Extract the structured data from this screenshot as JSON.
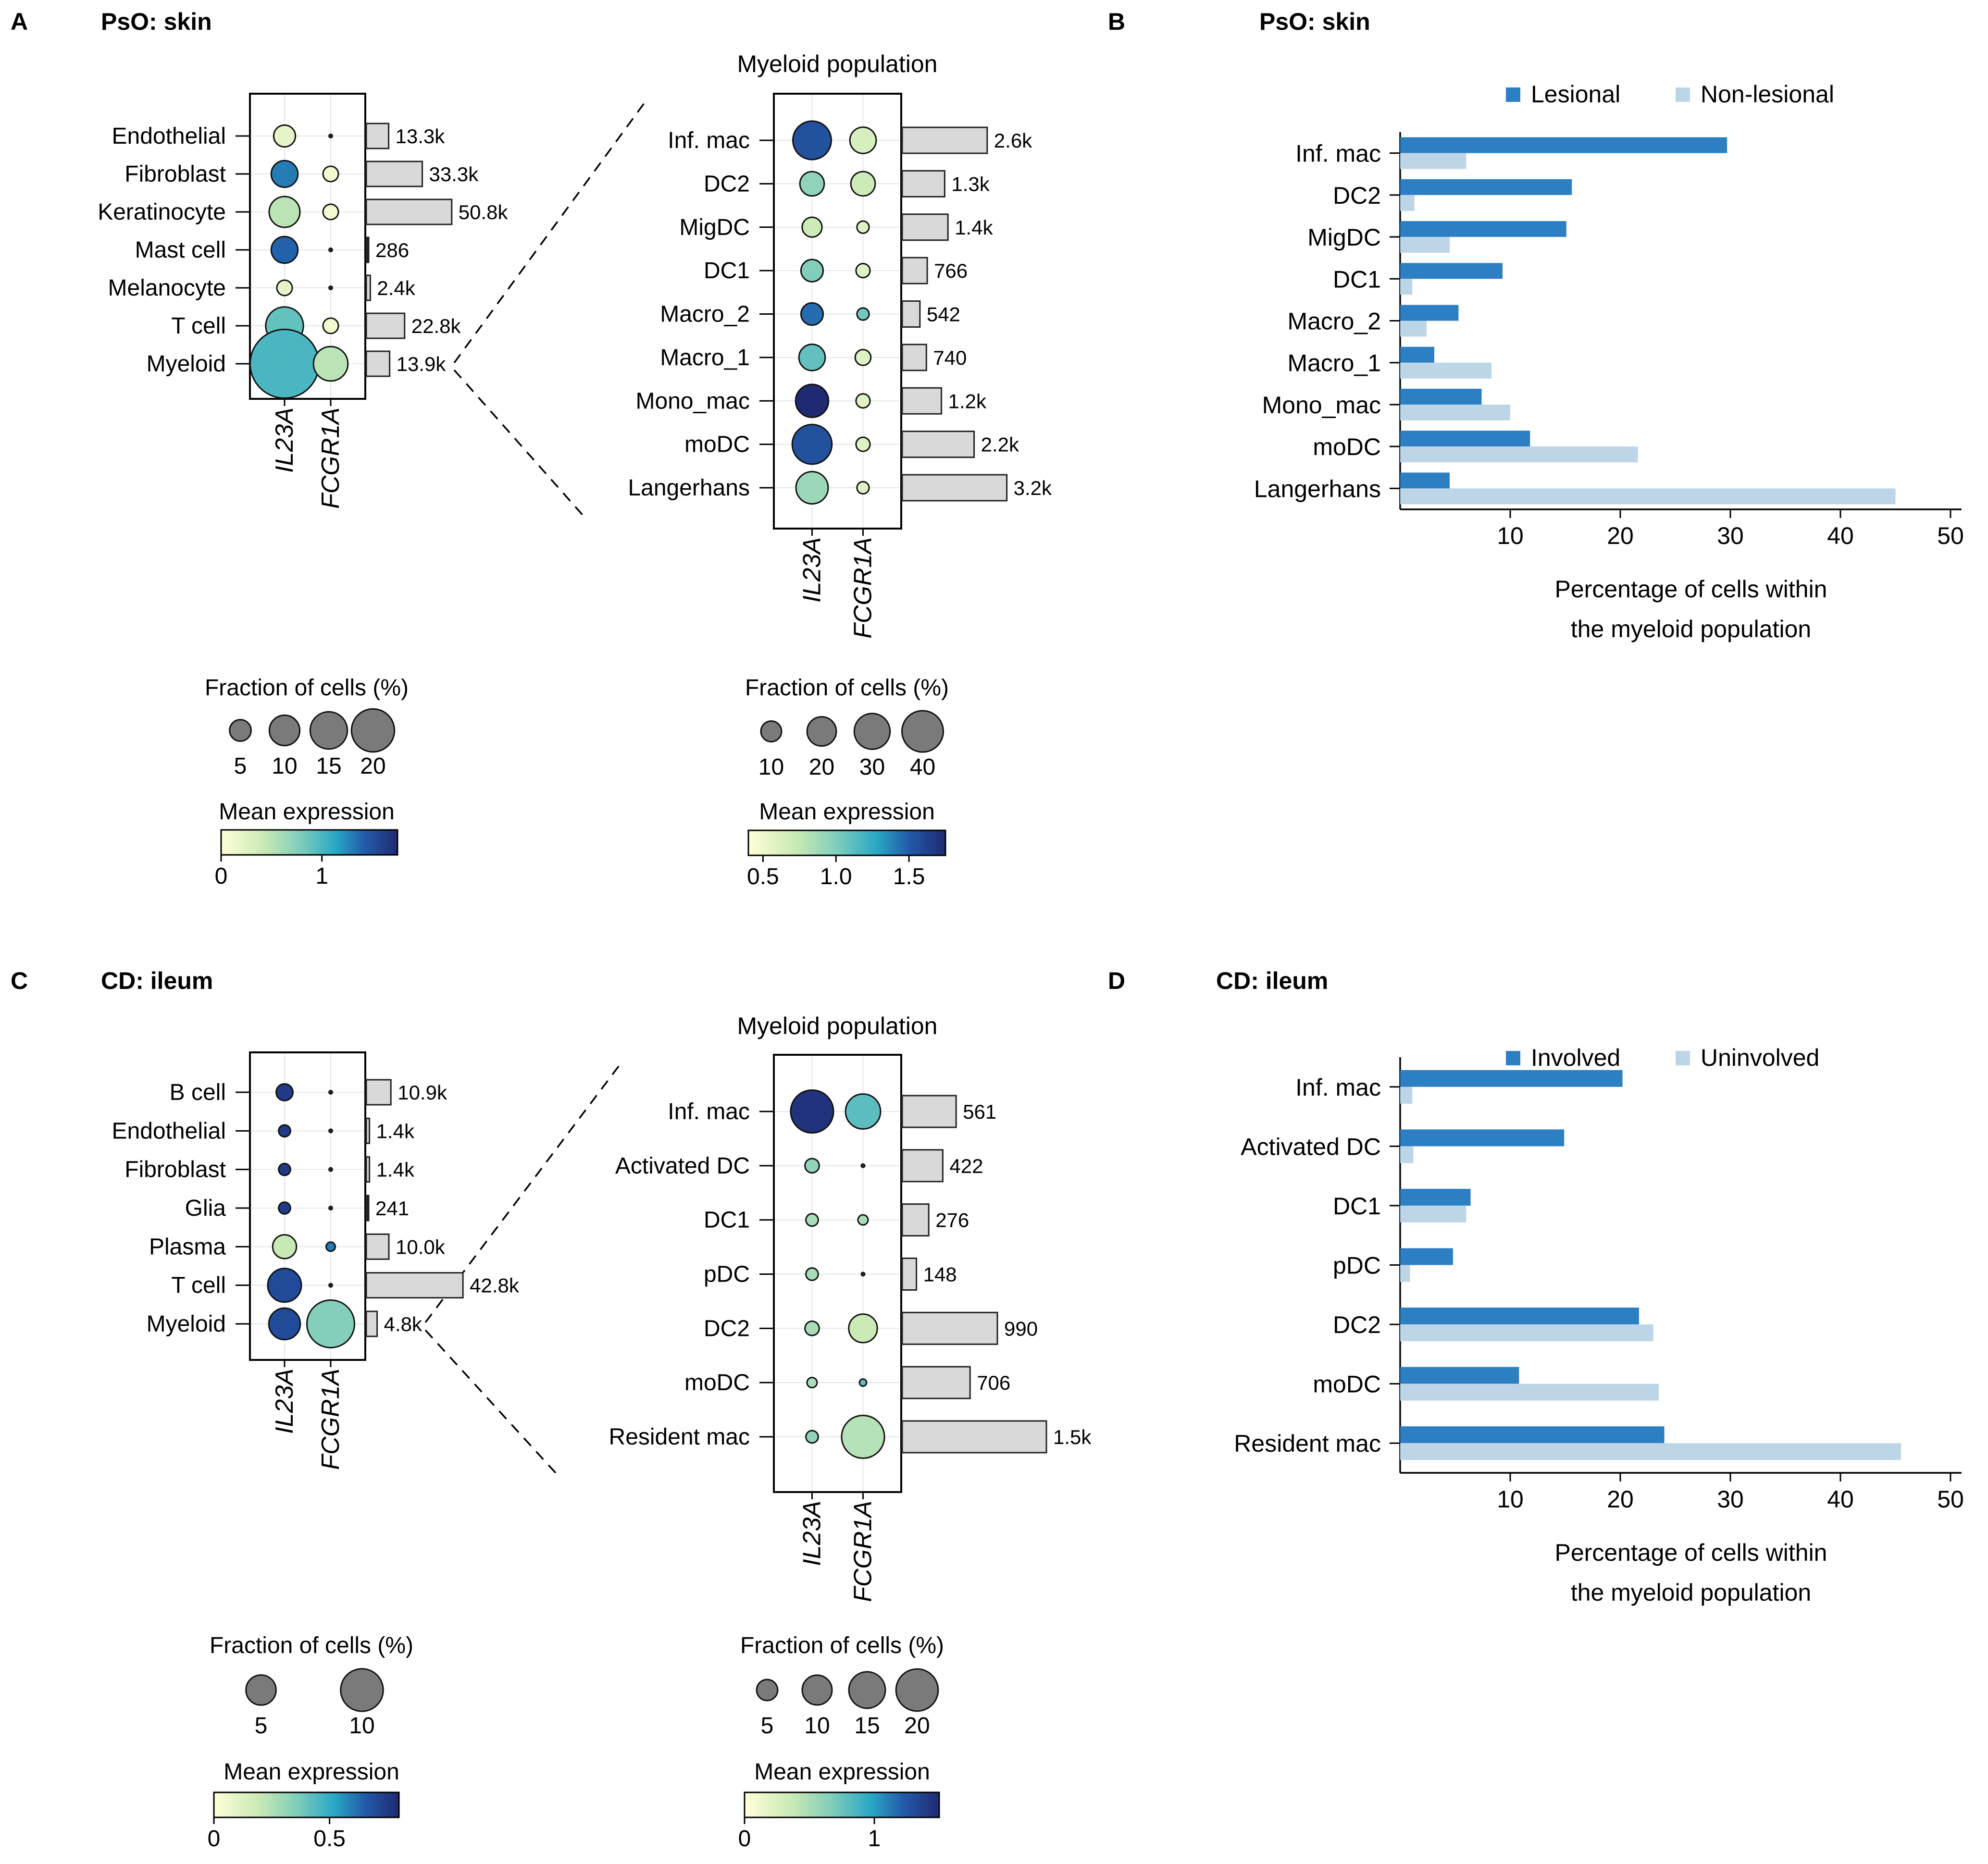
{
  "colors": {
    "lesional": "#2d7fc4",
    "nonlesional": "#bcd6e8",
    "bar_grey": "#d9d9d9",
    "dot_size_grey": "#7a7a7a"
  },
  "panels": {
    "A": {
      "letter": "A",
      "title": "PsO: skin",
      "subtitle": "Myeloid population"
    },
    "B": {
      "letter": "B",
      "title": "PsO: skin"
    },
    "C": {
      "letter": "C",
      "title": "CD: ileum",
      "subtitle": "Myeloid population"
    },
    "D": {
      "letter": "D",
      "title": "CD: ileum"
    }
  },
  "genes": [
    "IL23A",
    "FCGR1A"
  ],
  "legends": {
    "fraction_title": "Fraction of cells (%)",
    "mean_expr_title": "Mean expression",
    "A_left": {
      "sizes": [
        "5",
        "10",
        "15",
        "20"
      ],
      "ticks": [
        "0",
        "1"
      ],
      "tick_values": [
        0,
        1
      ],
      "max": 1.75
    },
    "A_right": {
      "sizes": [
        "10",
        "20",
        "30",
        "40"
      ],
      "ticks": [
        "0.5",
        "1.0",
        "1.5"
      ],
      "tick_values": [
        0.5,
        1.0,
        1.5
      ],
      "min": 0.4,
      "max": 1.75
    },
    "C_left": {
      "sizes": [
        "5",
        "10"
      ],
      "ticks": [
        "0",
        "0.5"
      ],
      "tick_values": [
        0,
        0.5
      ],
      "max": 0.8
    },
    "C_right": {
      "sizes": [
        "5",
        "10",
        "15",
        "20"
      ],
      "ticks": [
        "0",
        "1"
      ],
      "tick_values": [
        0,
        1
      ],
      "max": 1.5
    }
  },
  "chart_data": [
    {
      "id": "A_left",
      "type": "scatter",
      "categories": [
        "Endothelial",
        "Fibroblast",
        "Keratinocyte",
        "Mast cell",
        "Melanocyte",
        "T cell",
        "Myeloid"
      ],
      "fraction": {
        "IL23A": [
          2,
          3,
          4,
          3,
          1,
          6,
          20
        ],
        "FCGR1A": [
          0,
          1,
          1,
          0,
          0,
          1,
          5
        ]
      },
      "expression": {
        "IL23A": [
          0.2,
          1.3,
          0.5,
          1.4,
          0.2,
          0.9,
          1.0
        ],
        "FCGR1A": [
          0,
          0.1,
          0.1,
          0,
          0,
          0.1,
          0.5
        ]
      },
      "counts": [
        13.3,
        33.3,
        50.8,
        0.286,
        2.4,
        22.8,
        13.9
      ],
      "count_labels": [
        "13.3k",
        "33.3k",
        "50.8k",
        "286",
        "2.4k",
        "22.8k",
        "13.9k"
      ]
    },
    {
      "id": "A_right",
      "type": "scatter",
      "categories": [
        "Inf. mac",
        "DC2",
        "MigDC",
        "DC1",
        "Macro_2",
        "Macro_1",
        "Mono_mac",
        "moDC",
        "Langerhans"
      ],
      "fraction": {
        "IL23A": [
          30,
          12,
          8,
          10,
          10,
          14,
          22,
          32,
          21
        ],
        "FCGR1A": [
          14,
          12,
          3,
          4,
          3,
          5,
          4,
          4,
          3
        ]
      },
      "expression": {
        "IL23A": [
          1.55,
          0.95,
          0.7,
          1.0,
          1.45,
          1.1,
          1.75,
          1.55,
          0.9
        ],
        "FCGR1A": [
          0.65,
          0.7,
          0.6,
          0.6,
          1.05,
          0.6,
          0.6,
          0.6,
          0.6
        ]
      },
      "counts": [
        2.6,
        1.3,
        1.4,
        0.766,
        0.542,
        0.74,
        1.2,
        2.2,
        3.2
      ],
      "count_labels": [
        "2.6k",
        "1.3k",
        "1.4k",
        "766",
        "542",
        "740",
        "1.2k",
        "2.2k",
        "3.2k"
      ]
    },
    {
      "id": "B",
      "type": "bar",
      "orientation": "horizontal",
      "categories": [
        "Inf. mac",
        "DC2",
        "MigDC",
        "DC1",
        "Macro_2",
        "Macro_1",
        "Mono_mac",
        "moDC",
        "Langerhans"
      ],
      "series": [
        {
          "name": "Lesional",
          "values": [
            29.7,
            15.6,
            15.1,
            9.3,
            5.3,
            3.1,
            7.4,
            11.8,
            4.5
          ]
        },
        {
          "name": "Non-lesional",
          "values": [
            6.0,
            1.3,
            4.5,
            1.1,
            2.4,
            8.3,
            10.0,
            21.6,
            45.0
          ]
        }
      ],
      "xticks": [
        "10",
        "20",
        "30",
        "40",
        "50"
      ],
      "xlim": [
        0,
        51
      ],
      "xlabel": [
        "Percentage of cells within",
        "the myeloid population"
      ]
    },
    {
      "id": "C_left",
      "type": "scatter",
      "categories": [
        "B cell",
        "Endothelial",
        "Fibroblast",
        "Glia",
        "Plasma",
        "T cell",
        "Myeloid"
      ],
      "fraction": {
        "IL23A": [
          1,
          0.5,
          0.5,
          0.5,
          2,
          4,
          3.5
        ],
        "FCGR1A": [
          0,
          0,
          0,
          0,
          0.3,
          0,
          8
        ]
      },
      "expression": {
        "IL23A": [
          0.75,
          0.75,
          0.75,
          0.75,
          0.2,
          0.7,
          0.7
        ],
        "FCGR1A": [
          0,
          0,
          0,
          0,
          0.6,
          0,
          0.35
        ]
      },
      "counts": [
        10.9,
        1.4,
        1.4,
        0.241,
        10.0,
        42.8,
        4.8
      ],
      "count_labels": [
        "10.9k",
        "1.4k",
        "1.4k",
        "241",
        "10.0k",
        "42.8k",
        "4.8k"
      ]
    },
    {
      "id": "C_right",
      "type": "scatter",
      "categories": [
        "Inf. mac",
        "Activated DC",
        "DC1",
        "pDC",
        "DC2",
        "moDC",
        "Resident mac"
      ],
      "fraction": {
        "IL23A": [
          18,
          2,
          1.5,
          1.5,
          2,
          1,
          1.5
        ],
        "FCGR1A": [
          12,
          0,
          1,
          0,
          8,
          0.5,
          18
        ]
      },
      "expression": {
        "IL23A": [
          1.45,
          0.6,
          0.5,
          0.5,
          0.5,
          0.5,
          0.6
        ],
        "FCGR1A": [
          0.8,
          0,
          0.5,
          0,
          0.35,
          0.8,
          0.45
        ]
      },
      "counts": [
        0.561,
        0.422,
        0.276,
        0.148,
        0.99,
        0.706,
        1.5
      ],
      "count_labels": [
        "561",
        "422",
        "276",
        "148",
        "990",
        "706",
        "1.5k"
      ]
    },
    {
      "id": "D",
      "type": "bar",
      "orientation": "horizontal",
      "categories": [
        "Inf. mac",
        "Activated DC",
        "DC1",
        "pDC",
        "DC2",
        "moDC",
        "Resident mac"
      ],
      "series": [
        {
          "name": "Involved",
          "values": [
            20.2,
            14.9,
            6.4,
            4.8,
            21.7,
            10.8,
            24.0
          ]
        },
        {
          "name": "Uninvolved",
          "values": [
            1.1,
            1.2,
            6.0,
            0.9,
            23.0,
            23.5,
            45.5
          ]
        }
      ],
      "xticks": [
        "10",
        "20",
        "30",
        "40",
        "50"
      ],
      "xlim": [
        0,
        51
      ],
      "xlabel": [
        "Percentage of cells within",
        "the myeloid population"
      ]
    }
  ]
}
